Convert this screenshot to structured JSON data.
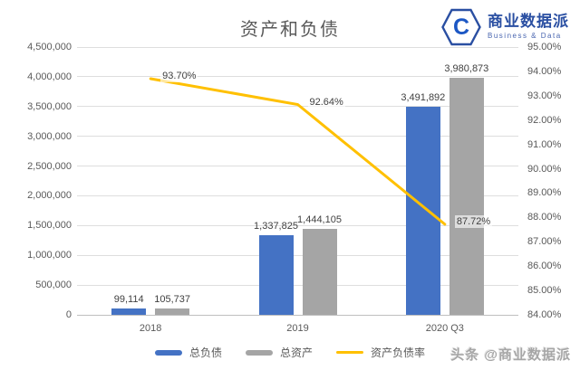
{
  "header": {
    "logo": {
      "symbol": "C",
      "name": "商业数据派",
      "tagline": "Business & Data",
      "color": "#2a4fa2"
    }
  },
  "watermark": {
    "text": "头条 @商业数据派"
  },
  "chart_data": {
    "type": "combo (bar + line, dual axis)",
    "title": "资产和负债",
    "categories": [
      "2018",
      "2019",
      "2020 Q3"
    ],
    "series": [
      {
        "key": "total-liabilities",
        "name": "总负债",
        "type": "bar",
        "axis": "left",
        "color": "#4472c4",
        "values": [
          99114,
          1337825,
          3491892
        ],
        "labels": [
          "99,114",
          "1,337,825",
          "3,491,892"
        ]
      },
      {
        "key": "total-assets",
        "name": "总资产",
        "type": "bar",
        "axis": "left",
        "color": "#a5a5a5",
        "values": [
          105737,
          1444105,
          3980873
        ],
        "labels": [
          "105,737",
          "1,444,105",
          "3,980,873"
        ]
      },
      {
        "key": "asset-liability-ratio",
        "name": "资产负债率",
        "type": "line",
        "axis": "right",
        "color": "#ffc000",
        "values": [
          93.7,
          92.64,
          87.72
        ],
        "labels": [
          "93.70%",
          "92.64%",
          "87.72%"
        ]
      }
    ],
    "left_axis": {
      "min": 0,
      "max": 4500000,
      "tick_labels": [
        "0",
        "500,000",
        "1,000,000",
        "1,500,000",
        "2,000,000",
        "2,500,000",
        "3,000,000",
        "3,500,000",
        "4,000,000",
        "4,500,000"
      ]
    },
    "right_axis": {
      "min": 84,
      "max": 95,
      "tick_labels": [
        "84.00%",
        "85.00%",
        "86.00%",
        "87.00%",
        "88.00%",
        "89.00%",
        "90.00%",
        "91.00%",
        "92.00%",
        "93.00%",
        "94.00%",
        "95.00%"
      ]
    },
    "grid": true,
    "legend_position": "bottom"
  }
}
